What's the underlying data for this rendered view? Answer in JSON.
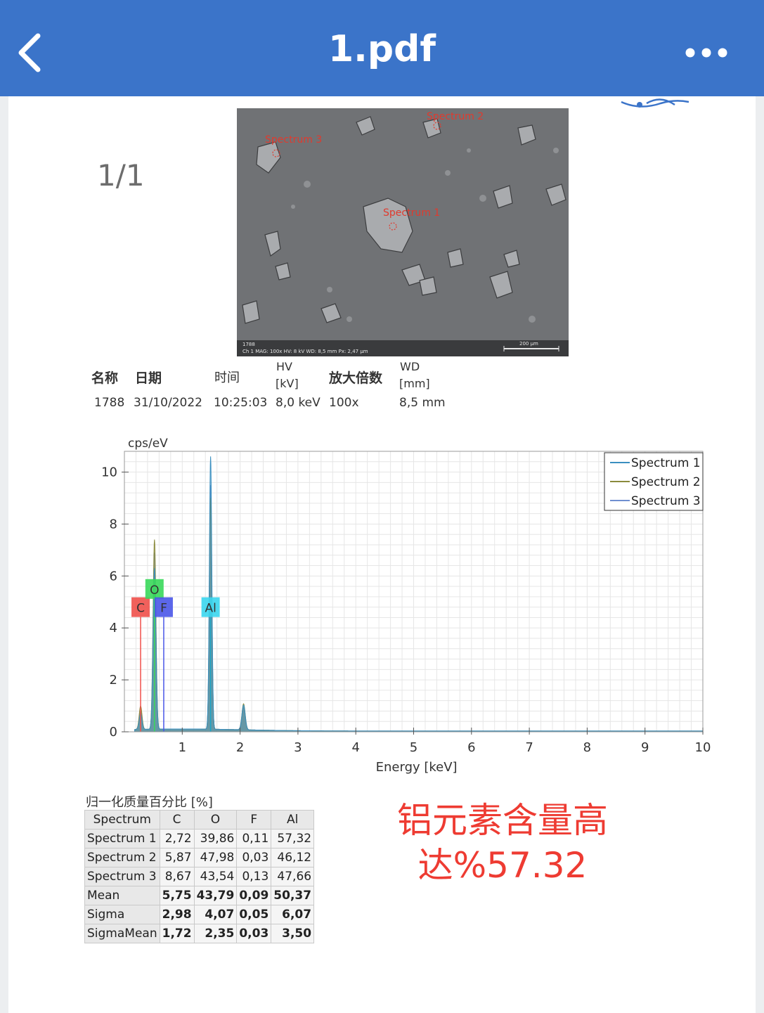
{
  "header": {
    "title": "1.pdf",
    "back_icon": "chevron-left-icon",
    "more_icon": "more-horizontal-icon",
    "bg_color": "#3b74c9"
  },
  "page_counter": "1/1",
  "sem_image": {
    "labels": [
      "Spectrum 3",
      "Spectrum 2",
      "Spectrum 1"
    ],
    "footer_left": "1788",
    "footer_line": "Ch 1   MAG: 100x   HV: 8 kV   WD: 8,5 mm   Px: 2,47 µm",
    "scale_label": "200 µm"
  },
  "info": {
    "headers": {
      "name": "名称",
      "date": "日期",
      "time": "时间",
      "hv": "HV",
      "hv_unit": "[kV]",
      "mag": "放大倍数",
      "wd": "WD",
      "wd_unit": "[mm]"
    },
    "values": {
      "name": "1788",
      "date": "31/10/2022",
      "time": "10:25:03",
      "hv": "8,0 keV",
      "mag": "100x",
      "wd": "8,5 mm"
    }
  },
  "chart_data": {
    "type": "line",
    "ylabel": "cps/eV",
    "xlabel": "Energy [keV]",
    "xlim": [
      0,
      10
    ],
    "ylim": [
      0,
      10.8
    ],
    "x_ticks": [
      1,
      2,
      3,
      4,
      5,
      6,
      7,
      8,
      9,
      10
    ],
    "y_ticks": [
      0,
      2,
      4,
      6,
      8,
      10
    ],
    "grid": true,
    "legend_position": "top-right",
    "series": [
      {
        "name": "Spectrum 1",
        "color": "#3a8fc0",
        "peaks": [
          {
            "x": 0.28,
            "y": 0.6
          },
          {
            "x": 0.52,
            "y": 6.2
          },
          {
            "x": 1.49,
            "y": 10.5
          },
          {
            "x": 2.06,
            "y": 0.95
          }
        ]
      },
      {
        "name": "Spectrum 2",
        "color": "#8a8a3c",
        "peaks": [
          {
            "x": 0.28,
            "y": 0.9
          },
          {
            "x": 0.52,
            "y": 7.3
          },
          {
            "x": 1.49,
            "y": 8.9
          },
          {
            "x": 2.06,
            "y": 1.0
          }
        ]
      },
      {
        "name": "Spectrum 3",
        "color": "#6f8fd0",
        "peaks": [
          {
            "x": 0.28,
            "y": 0.7
          },
          {
            "x": 0.52,
            "y": 6.8
          },
          {
            "x": 1.49,
            "y": 9.4
          },
          {
            "x": 2.06,
            "y": 0.85
          }
        ]
      }
    ],
    "element_markers": [
      {
        "label": "C",
        "x": 0.28,
        "y": 4.8,
        "color": "#f0504a"
      },
      {
        "label": "O",
        "x": 0.52,
        "y": 5.5,
        "color": "#38d85a"
      },
      {
        "label": "F",
        "x": 0.68,
        "y": 4.8,
        "color": "#4a57e8"
      },
      {
        "label": "Al",
        "x": 1.49,
        "y": 4.8,
        "color": "#3ad6ee"
      }
    ]
  },
  "composition": {
    "title": "归一化质量百分比 [%]",
    "columns": [
      "Spectrum",
      "C",
      "O",
      "F",
      "Al"
    ],
    "rows": [
      [
        "Spectrum 1",
        "2,72",
        "39,86",
        "0,11",
        "57,32"
      ],
      [
        "Spectrum 2",
        "5,87",
        "47,98",
        "0,03",
        "46,12"
      ],
      [
        "Spectrum 3",
        "8,67",
        "43,54",
        "0,13",
        "47,66"
      ]
    ],
    "stats": [
      [
        "Mean",
        "5,75",
        "43,79",
        "0,09",
        "50,37"
      ],
      [
        "Sigma",
        "2,98",
        "4,07",
        "0,05",
        "6,07"
      ],
      [
        "SigmaMean",
        "1,72",
        "2,35",
        "0,03",
        "3,50"
      ]
    ]
  },
  "note": {
    "line1": "铝元素含量高",
    "line2": "达%57.32",
    "color": "#ee3b32"
  }
}
